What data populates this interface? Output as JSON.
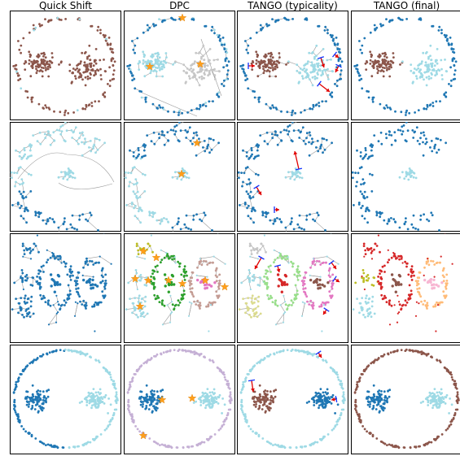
{
  "figure": {
    "column_titles": [
      "Quick Shift",
      "DPC",
      "TANGO (typicality)",
      "TANGO (final)"
    ],
    "colors": {
      "blue": "#1f77b4",
      "lightblue": "#9edae5",
      "brown": "#8c564b",
      "gray": "#c7c7c7",
      "green": "#2ca02c",
      "lightgreen": "#98df8a",
      "pink": "#e377c2",
      "lightpink": "#f7b6d2",
      "rosybrown": "#c49c94",
      "olive": "#bcbd22",
      "khaki": "#dbdb8d",
      "red": "#d62728",
      "orange": "#ffbb78",
      "lavender": "#c5b0d5",
      "star": "#ff9f1c",
      "edge": "#999999",
      "arrow_red": "#e00000",
      "arrow_blue": "#1030ff"
    }
  },
  "chart_data": [
    {
      "type": "scatter",
      "title": "Quick Shift",
      "row": 1,
      "dataset": "two blobs inside a ring",
      "clusters": [
        {
          "shape": "ring",
          "color": "brown"
        },
        {
          "shape": "left blob",
          "color": "brown"
        },
        {
          "shape": "right blob",
          "color": "brown"
        }
      ],
      "graph_edges": false,
      "centers": []
    },
    {
      "type": "scatter",
      "title": "DPC",
      "row": 1,
      "dataset": "two blobs inside a ring",
      "clusters": [
        {
          "shape": "ring",
          "color": "blue"
        },
        {
          "shape": "left blob",
          "color": "lightblue"
        },
        {
          "shape": "right blob",
          "color": "gray"
        }
      ],
      "graph_edges": true,
      "centers": [
        "ring top",
        "left blob",
        "right blob"
      ]
    },
    {
      "type": "scatter",
      "title": "TANGO (typicality)",
      "row": 1,
      "dataset": "two blobs inside a ring",
      "clusters": [
        {
          "shape": "ring",
          "color": "blue"
        },
        {
          "shape": "left blob",
          "color": "brown"
        },
        {
          "shape": "right blob",
          "color": "lightblue"
        }
      ],
      "graph_edges": true,
      "arrows": 5
    },
    {
      "type": "scatter",
      "title": "TANGO (final)",
      "row": 1,
      "dataset": "two blobs inside a ring",
      "clusters": [
        {
          "shape": "ring",
          "color": "blue"
        },
        {
          "shape": "left blob",
          "color": "brown"
        },
        {
          "shape": "right blob",
          "color": "lightblue"
        }
      ],
      "graph_edges": false
    },
    {
      "type": "scatter",
      "title": "Quick Shift",
      "row": 2,
      "dataset": "open ring around small blob",
      "clusters": [
        {
          "shape": "ring",
          "color": "blue"
        },
        {
          "shape": "inner blob",
          "color": "lightblue"
        }
      ],
      "graph_edges": true
    },
    {
      "type": "scatter",
      "title": "DPC",
      "row": 2,
      "dataset": "open ring around small blob",
      "clusters": [
        {
          "shape": "ring",
          "color": "blue"
        },
        {
          "shape": "inner blob",
          "color": "lightblue"
        }
      ],
      "graph_edges": true,
      "centers": [
        "ring right",
        "inner blob"
      ]
    },
    {
      "type": "scatter",
      "title": "TANGO (typicality)",
      "row": 2,
      "dataset": "open ring around small blob",
      "clusters": [
        {
          "shape": "ring",
          "color": "blue"
        },
        {
          "shape": "inner blob",
          "color": "lightblue"
        }
      ],
      "graph_edges": true,
      "arrows": 3
    },
    {
      "type": "scatter",
      "title": "TANGO (final)",
      "row": 2,
      "dataset": "open ring around small blob",
      "clusters": [
        {
          "shape": "ring",
          "color": "blue"
        },
        {
          "shape": "inner blob",
          "color": "lightblue"
        }
      ],
      "graph_edges": false
    },
    {
      "type": "scatter",
      "title": "Quick Shift",
      "row": 3,
      "dataset": "multi-structure",
      "clusters": [
        {
          "shape": "main structure",
          "color": "blue"
        }
      ],
      "graph_edges": true
    },
    {
      "type": "scatter",
      "title": "DPC",
      "row": 3,
      "dataset": "multi-structure",
      "clusters": [
        {
          "shape": "left",
          "color": "lightblue"
        },
        {
          "shape": "left-center",
          "color": "green"
        },
        {
          "shape": "center",
          "color": "pink"
        },
        {
          "shape": "right",
          "color": "rosybrown"
        },
        {
          "shape": "top-left",
          "color": "olive"
        }
      ],
      "graph_edges": true,
      "centers": 9
    },
    {
      "type": "scatter",
      "title": "TANGO (typicality)",
      "row": 3,
      "dataset": "multi-structure",
      "clusters": [
        {
          "shape": "left",
          "color": "lightblue"
        },
        {
          "shape": "left-center",
          "color": "lightgreen"
        },
        {
          "shape": "center",
          "color": "brown"
        },
        {
          "shape": "right",
          "color": "pink"
        },
        {
          "shape": "bottom-left",
          "color": "khaki"
        }
      ],
      "graph_edges": true,
      "arrows": 5
    },
    {
      "type": "scatter",
      "title": "TANGO (final)",
      "row": 3,
      "dataset": "multi-structure",
      "clusters": [
        {
          "shape": "left",
          "color": "olive"
        },
        {
          "shape": "left-center",
          "color": "red"
        },
        {
          "shape": "center",
          "color": "brown"
        },
        {
          "shape": "right",
          "color": "orange"
        },
        {
          "shape": "inner right",
          "color": "lightpink"
        }
      ],
      "graph_edges": false
    },
    {
      "type": "scatter",
      "title": "Quick Shift",
      "row": 4,
      "dataset": "two blobs inside large ring",
      "clusters": [
        {
          "shape": "ring",
          "color": "lightblue"
        },
        {
          "shape": "left blob",
          "color": "blue"
        },
        {
          "shape": "right blob",
          "color": "lightblue"
        }
      ],
      "graph_edges": false
    },
    {
      "type": "scatter",
      "title": "DPC",
      "row": 4,
      "dataset": "two blobs inside large ring",
      "clusters": [
        {
          "shape": "ring",
          "color": "lavender"
        },
        {
          "shape": "left blob",
          "color": "blue"
        },
        {
          "shape": "right blob",
          "color": "lightblue"
        }
      ],
      "graph_edges": false,
      "centers": 3
    },
    {
      "type": "scatter",
      "title": "TANGO (typicality)",
      "row": 4,
      "dataset": "two blobs inside large ring",
      "clusters": [
        {
          "shape": "ring",
          "color": "lightblue"
        },
        {
          "shape": "left blob",
          "color": "brown"
        },
        {
          "shape": "right blob",
          "color": "blue"
        }
      ],
      "graph_edges": false,
      "arrows": 3
    },
    {
      "type": "scatter",
      "title": "TANGO (final)",
      "row": 4,
      "dataset": "two blobs inside large ring",
      "clusters": [
        {
          "shape": "ring",
          "color": "brown"
        },
        {
          "shape": "left blob",
          "color": "blue"
        },
        {
          "shape": "right blob",
          "color": "lightblue"
        }
      ],
      "graph_edges": false
    }
  ]
}
